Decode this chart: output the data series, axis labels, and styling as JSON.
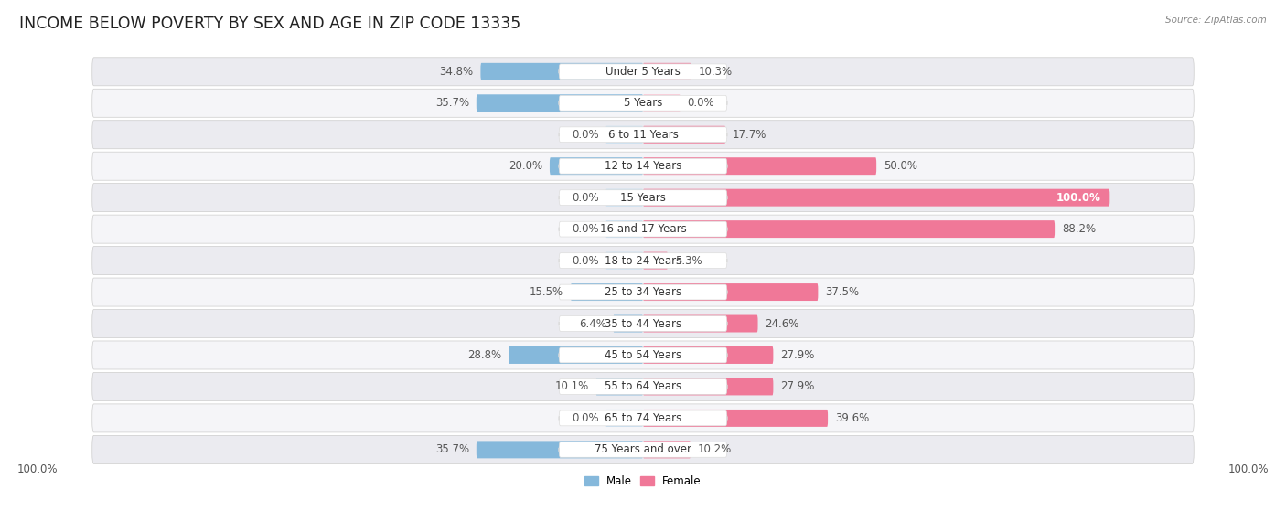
{
  "title": "INCOME BELOW POVERTY BY SEX AND AGE IN ZIP CODE 13335",
  "source": "Source: ZipAtlas.com",
  "categories": [
    "Under 5 Years",
    "5 Years",
    "6 to 11 Years",
    "12 to 14 Years",
    "15 Years",
    "16 and 17 Years",
    "18 to 24 Years",
    "25 to 34 Years",
    "35 to 44 Years",
    "45 to 54 Years",
    "55 to 64 Years",
    "65 to 74 Years",
    "75 Years and over"
  ],
  "male": [
    34.8,
    35.7,
    0.0,
    20.0,
    0.0,
    0.0,
    0.0,
    15.5,
    6.4,
    28.8,
    10.1,
    0.0,
    35.7
  ],
  "female": [
    10.3,
    0.0,
    17.7,
    50.0,
    100.0,
    88.2,
    5.3,
    37.5,
    24.6,
    27.9,
    27.9,
    39.6,
    10.2
  ],
  "male_color": "#85b8db",
  "female_color": "#f07898",
  "male_zero_color": "#c5ddef",
  "female_zero_color": "#f9c0ce",
  "row_bg_odd": "#ebebf0",
  "row_bg_even": "#f5f5f8",
  "max_val": 100.0,
  "title_fontsize": 12.5,
  "label_fontsize": 8.5,
  "value_fontsize": 8.5,
  "axis_label_fontsize": 8.5
}
